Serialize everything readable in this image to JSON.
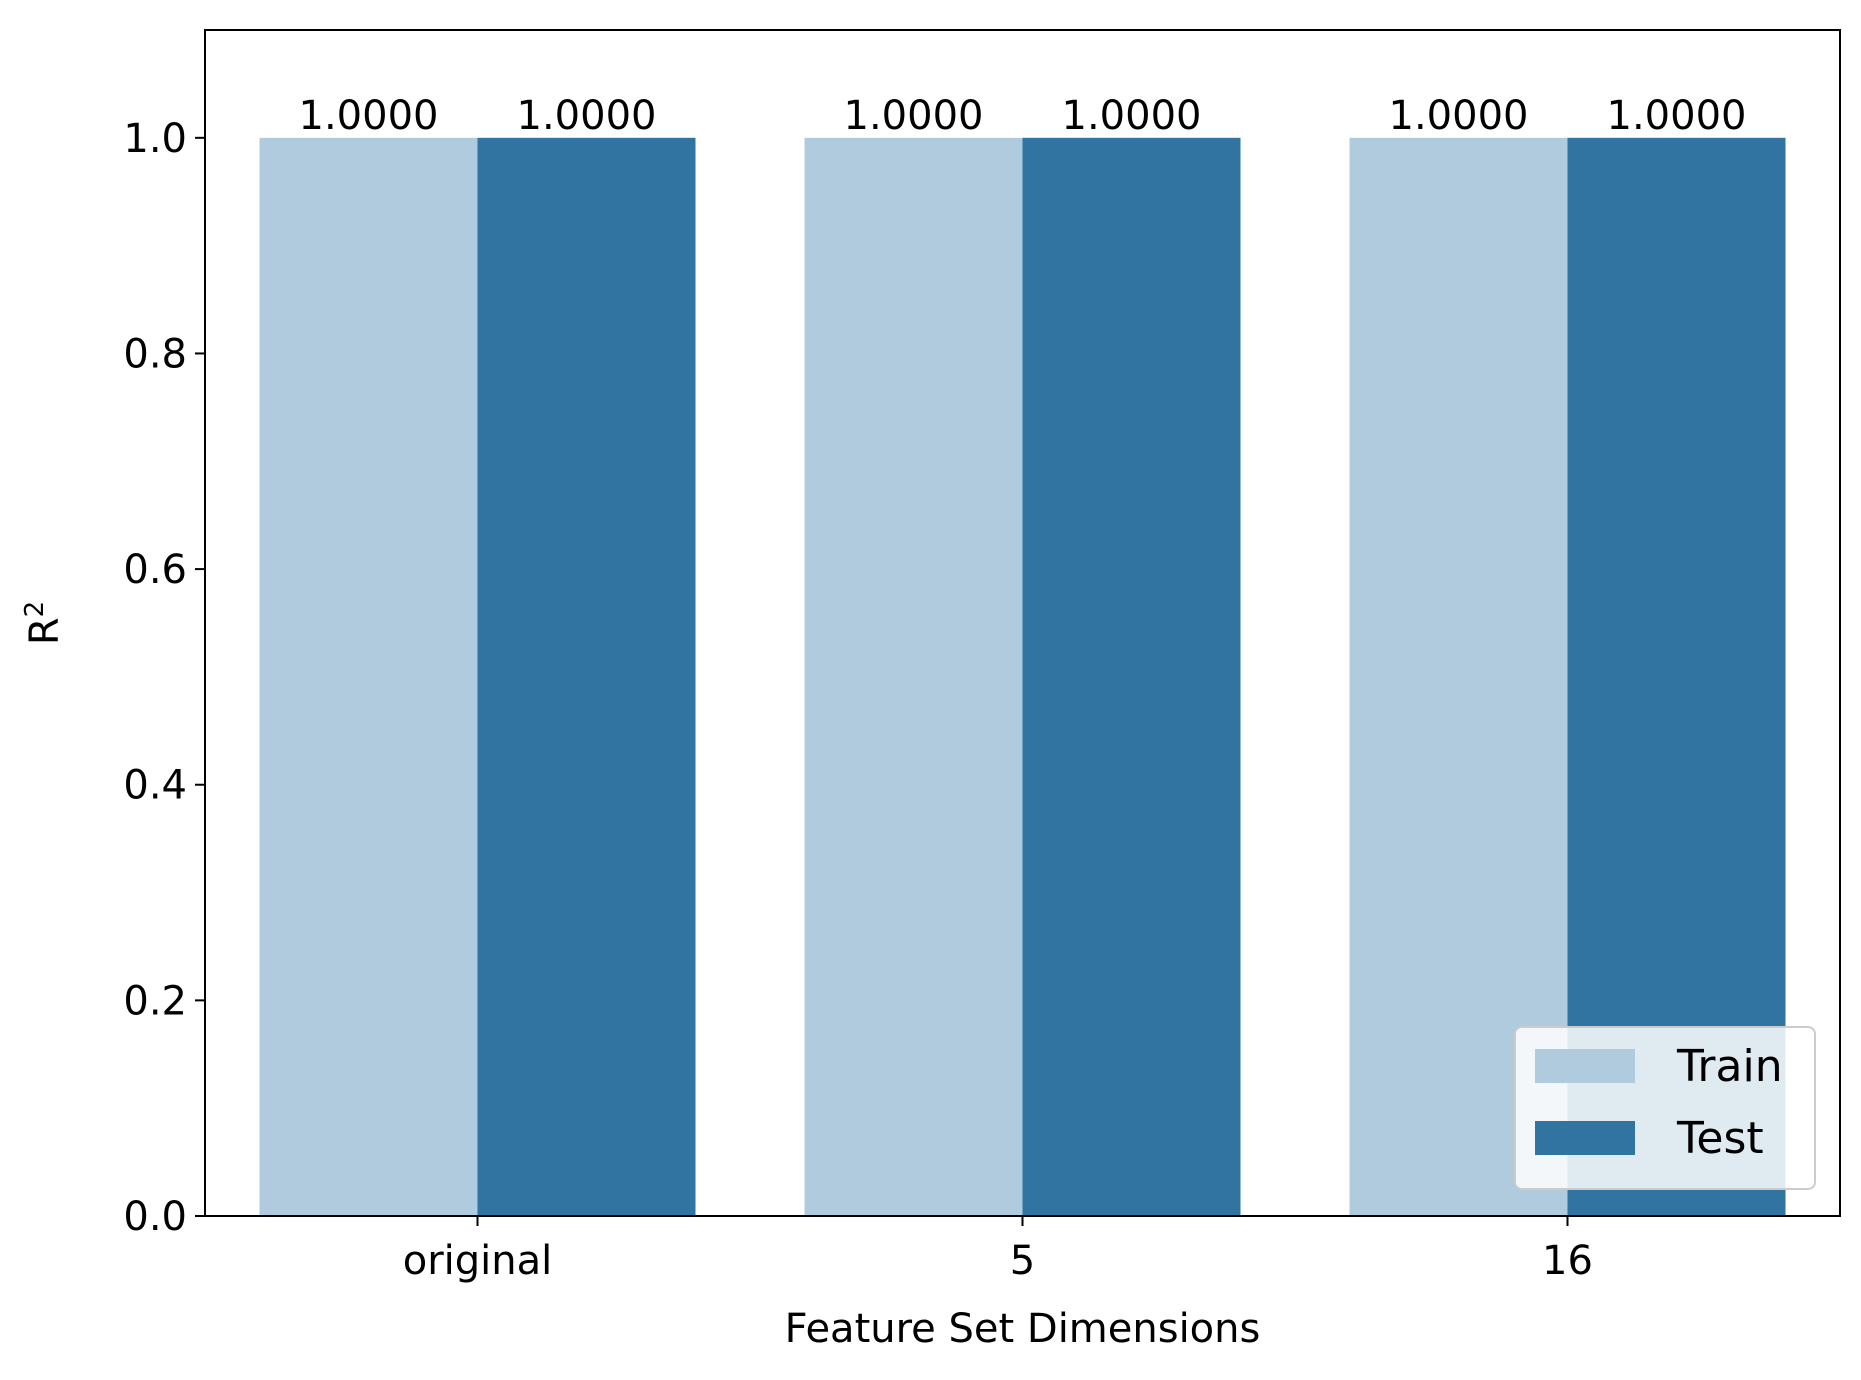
{
  "chart_data": {
    "type": "bar",
    "title": "",
    "xlabel": "Feature Set Dimensions",
    "ylabel": "R",
    "ylabel_superscript": "2",
    "categories": [
      "original",
      "5",
      "16"
    ],
    "series": [
      {
        "name": "Train",
        "color": "#afcbdd",
        "values": [
          1.0,
          1.0,
          1.0
        ],
        "labels": [
          "1.0000",
          "1.0000",
          "1.0000"
        ]
      },
      {
        "name": "Test",
        "color": "#3274a1",
        "values": [
          1.0,
          1.0,
          1.0
        ],
        "labels": [
          "1.0000",
          "1.0000",
          "1.0000"
        ]
      }
    ],
    "ylim": [
      0,
      1.1
    ],
    "yticks": [
      0.0,
      0.2,
      0.4,
      0.6,
      0.8,
      1.0
    ],
    "ytick_labels": [
      "0.0",
      "0.2",
      "0.4",
      "0.6",
      "0.8",
      "1.0"
    ],
    "grid": false,
    "legend_position": "lower-right"
  }
}
